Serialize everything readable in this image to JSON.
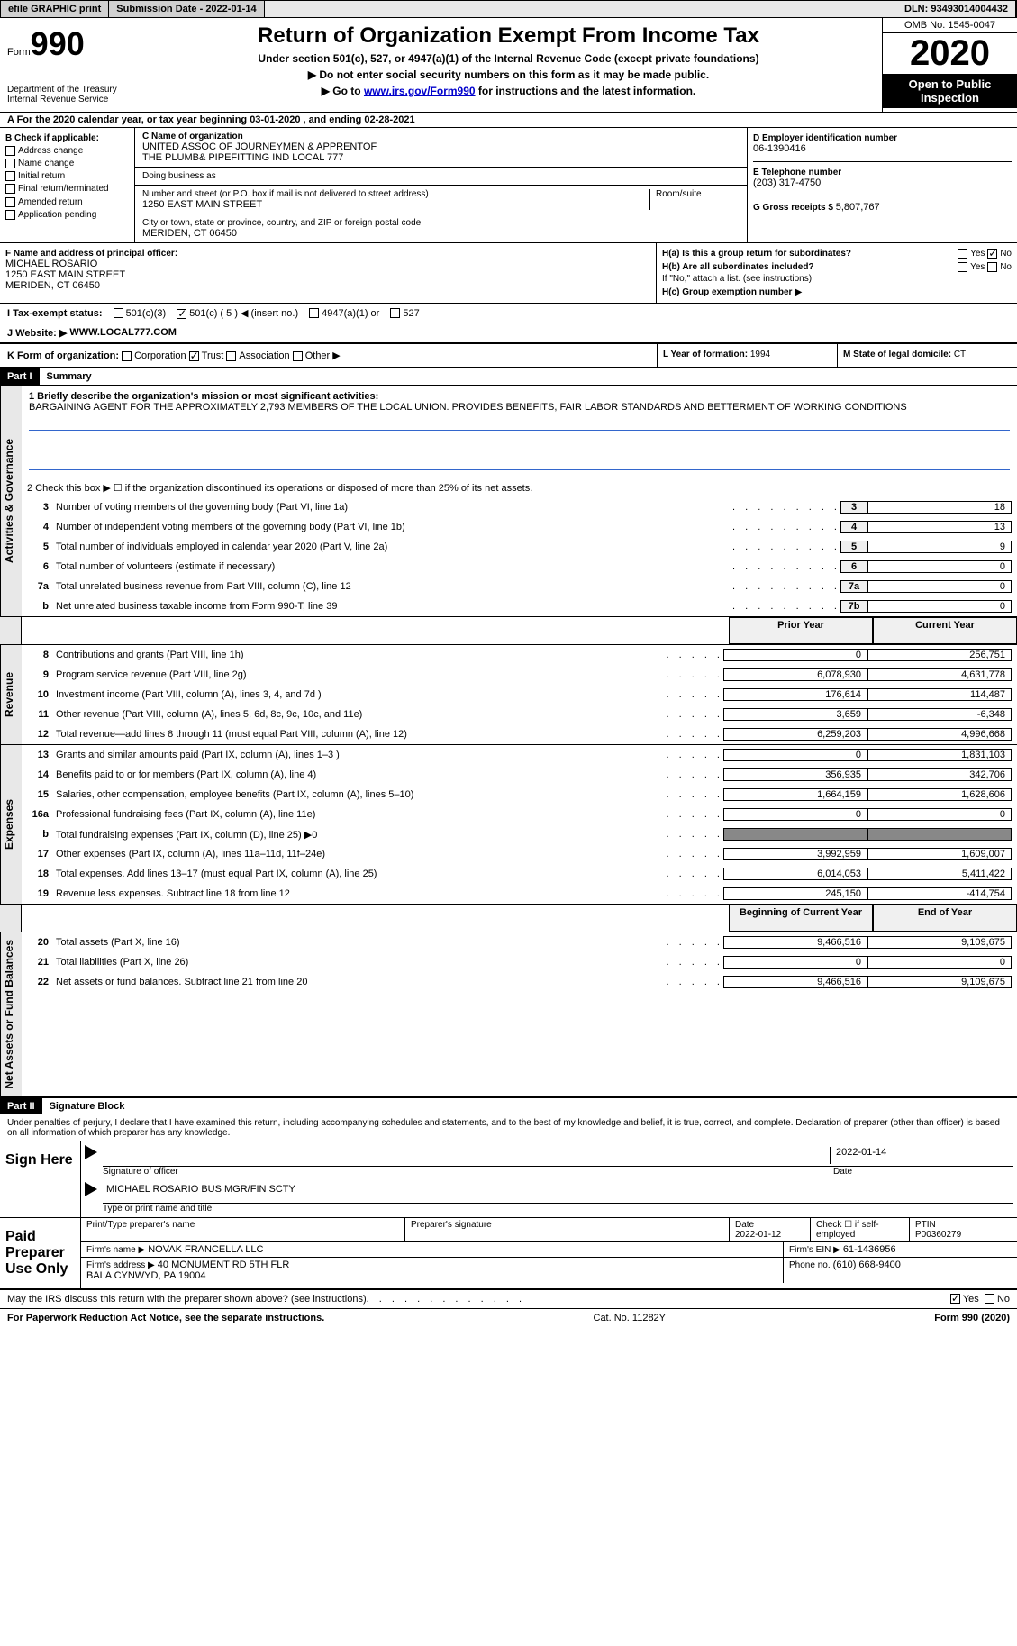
{
  "topbar": {
    "efile": "efile GRAPHIC print",
    "submission_label": "Submission Date - 2022-01-14",
    "dln": "DLN: 93493014004432"
  },
  "header": {
    "form_label": "Form",
    "form_number": "990",
    "title": "Return of Organization Exempt From Income Tax",
    "subtitle": "Under section 501(c), 527, or 4947(a)(1) of the Internal Revenue Code (except private foundations)",
    "note1": "▶ Do not enter social security numbers on this form as it may be made public.",
    "note2_prefix": "▶ Go to ",
    "note2_link": "www.irs.gov/Form990",
    "note2_suffix": " for instructions and the latest information.",
    "dept": "Department of the Treasury\nInternal Revenue Service",
    "omb": "OMB No. 1545-0047",
    "year": "2020",
    "inspection": "Open to Public Inspection"
  },
  "row_a": {
    "text": "A For the 2020 calendar year, or tax year beginning 03-01-2020    , and ending 02-28-2021"
  },
  "col_b": {
    "title": "B Check if applicable:",
    "items": [
      "Address change",
      "Name change",
      "Initial return",
      "Final return/terminated",
      "Amended return",
      "Application pending"
    ]
  },
  "col_c": {
    "name_label": "C Name of organization",
    "name": "UNITED ASSOC OF JOURNEYMEN & APPRENTOF\nTHE PLUMB& PIPEFITTING IND LOCAL 777",
    "dba_label": "Doing business as",
    "dba": "",
    "street_label": "Number and street (or P.O. box if mail is not delivered to street address)",
    "room_label": "Room/suite",
    "street": "1250 EAST MAIN STREET",
    "city_label": "City or town, state or province, country, and ZIP or foreign postal code",
    "city": "MERIDEN, CT  06450"
  },
  "col_d": {
    "ein_label": "D Employer identification number",
    "ein": "06-1390416",
    "phone_label": "E Telephone number",
    "phone": "(203) 317-4750",
    "gross_label": "G Gross receipts $ ",
    "gross": "5,807,767"
  },
  "section_f": {
    "label": "F Name and address of principal officer:",
    "name": "MICHAEL ROSARIO",
    "street": "1250 EAST MAIN STREET",
    "city": "MERIDEN, CT  06450"
  },
  "section_h": {
    "ha_label": "H(a)  Is this a group return for subordinates?",
    "ha_yes": "Yes",
    "ha_no": "No",
    "hb_label": "H(b)  Are all subordinates included?",
    "hb_note": "If \"No,\" attach a list. (see instructions)",
    "hc_label": "H(c)  Group exemption number ▶"
  },
  "row_i": {
    "label": "I   Tax-exempt status:",
    "opts": [
      "501(c)(3)",
      "501(c) ( 5 ) ◀ (insert no.)",
      "4947(a)(1) or",
      "527"
    ]
  },
  "row_j": {
    "label": "J   Website: ▶",
    "value": "WWW.LOCAL777.COM"
  },
  "row_k": {
    "label": "K Form of organization:",
    "opts": [
      "Corporation",
      "Trust",
      "Association",
      "Other ▶"
    ],
    "l_label": "L Year of formation: ",
    "l_val": "1994",
    "m_label": "M State of legal domicile: ",
    "m_val": "CT"
  },
  "part1": {
    "header": "Part I",
    "title": "Summary",
    "line1_label": "1   Briefly describe the organization's mission or most significant activities:",
    "line1_text": "BARGAINING AGENT FOR THE APPROXIMATELY 2,793 MEMBERS OF THE LOCAL UNION. PROVIDES BENEFITS, FAIR LABOR STANDARDS AND BETTERMENT OF WORKING CONDITIONS",
    "line2_label": "2   Check this box ▶ ☐  if the organization discontinued its operations or disposed of more than 25% of its net assets.",
    "governance_label": "Activities & Governance",
    "revenue_label": "Revenue",
    "expenses_label": "Expenses",
    "netassets_label": "Net Assets or Fund Balances",
    "gov_lines": [
      {
        "n": "3",
        "desc": "Number of voting members of the governing body (Part VI, line 1a)",
        "cell": "3",
        "val": "18"
      },
      {
        "n": "4",
        "desc": "Number of independent voting members of the governing body (Part VI, line 1b)",
        "cell": "4",
        "val": "13"
      },
      {
        "n": "5",
        "desc": "Total number of individuals employed in calendar year 2020 (Part V, line 2a)",
        "cell": "5",
        "val": "9"
      },
      {
        "n": "6",
        "desc": "Total number of volunteers (estimate if necessary)",
        "cell": "6",
        "val": "0"
      },
      {
        "n": "7a",
        "desc": "Total unrelated business revenue from Part VIII, column (C), line 12",
        "cell": "7a",
        "val": "0"
      },
      {
        "n": "b",
        "desc": "Net unrelated business taxable income from Form 990-T, line 39",
        "cell": "7b",
        "val": "0"
      }
    ],
    "prior_year_header": "Prior Year",
    "current_year_header": "Current Year",
    "rev_lines": [
      {
        "n": "8",
        "desc": "Contributions and grants (Part VIII, line 1h)",
        "py": "0",
        "cy": "256,751"
      },
      {
        "n": "9",
        "desc": "Program service revenue (Part VIII, line 2g)",
        "py": "6,078,930",
        "cy": "4,631,778"
      },
      {
        "n": "10",
        "desc": "Investment income (Part VIII, column (A), lines 3, 4, and 7d )",
        "py": "176,614",
        "cy": "114,487"
      },
      {
        "n": "11",
        "desc": "Other revenue (Part VIII, column (A), lines 5, 6d, 8c, 9c, 10c, and 11e)",
        "py": "3,659",
        "cy": "-6,348"
      },
      {
        "n": "12",
        "desc": "Total revenue—add lines 8 through 11 (must equal Part VIII, column (A), line 12)",
        "py": "6,259,203",
        "cy": "4,996,668"
      }
    ],
    "exp_lines": [
      {
        "n": "13",
        "desc": "Grants and similar amounts paid (Part IX, column (A), lines 1–3 )",
        "py": "0",
        "cy": "1,831,103"
      },
      {
        "n": "14",
        "desc": "Benefits paid to or for members (Part IX, column (A), line 4)",
        "py": "356,935",
        "cy": "342,706"
      },
      {
        "n": "15",
        "desc": "Salaries, other compensation, employee benefits (Part IX, column (A), lines 5–10)",
        "py": "1,664,159",
        "cy": "1,628,606"
      },
      {
        "n": "16a",
        "desc": "Professional fundraising fees (Part IX, column (A), line 11e)",
        "py": "0",
        "cy": "0"
      },
      {
        "n": "b",
        "desc": "Total fundraising expenses (Part IX, column (D), line 25) ▶0",
        "py": "",
        "cy": "",
        "shaded": true
      },
      {
        "n": "17",
        "desc": "Other expenses (Part IX, column (A), lines 11a–11d, 11f–24e)",
        "py": "3,992,959",
        "cy": "1,609,007"
      },
      {
        "n": "18",
        "desc": "Total expenses. Add lines 13–17 (must equal Part IX, column (A), line 25)",
        "py": "6,014,053",
        "cy": "5,411,422"
      },
      {
        "n": "19",
        "desc": "Revenue less expenses. Subtract line 18 from line 12",
        "py": "245,150",
        "cy": "-414,754"
      }
    ],
    "boy_header": "Beginning of Current Year",
    "eoy_header": "End of Year",
    "na_lines": [
      {
        "n": "20",
        "desc": "Total assets (Part X, line 16)",
        "py": "9,466,516",
        "cy": "9,109,675"
      },
      {
        "n": "21",
        "desc": "Total liabilities (Part X, line 26)",
        "py": "0",
        "cy": "0"
      },
      {
        "n": "22",
        "desc": "Net assets or fund balances. Subtract line 21 from line 20",
        "py": "9,466,516",
        "cy": "9,109,675"
      }
    ]
  },
  "part2": {
    "header": "Part II",
    "title": "Signature Block",
    "declaration": "Under penalties of perjury, I declare that I have examined this return, including accompanying schedules and statements, and to the best of my knowledge and belief, it is true, correct, and complete. Declaration of preparer (other than officer) is based on all information of which preparer has any knowledge.",
    "sign_here": "Sign Here",
    "sig_officer_label": "Signature of officer",
    "sig_date": "2022-01-14",
    "date_label": "Date",
    "officer_name": "MICHAEL ROSARIO  BUS MGR/FIN SCTY",
    "officer_type_label": "Type or print name and title",
    "paid_preparer": "Paid Preparer Use Only",
    "print_name_label": "Print/Type preparer's name",
    "prep_sig_label": "Preparer's signature",
    "prep_date_label": "Date",
    "prep_date": "2022-01-12",
    "check_self": "Check ☐ if self-employed",
    "ptin_label": "PTIN",
    "ptin": "P00360279",
    "firm_name_label": "Firm's name    ▶",
    "firm_name": "NOVAK FRANCELLA LLC",
    "firm_ein_label": "Firm's EIN ▶",
    "firm_ein": "61-1436956",
    "firm_addr_label": "Firm's address ▶",
    "firm_addr": "40 MONUMENT RD 5TH FLR\nBALA CYNWYD, PA  19004",
    "phone_label": "Phone no.",
    "phone": "(610) 668-9400",
    "may_irs": "May the IRS discuss this return with the preparer shown above? (see instructions)",
    "yes": "Yes",
    "no": "No"
  },
  "footer": {
    "left": "For Paperwork Reduction Act Notice, see the separate instructions.",
    "mid": "Cat. No. 11282Y",
    "right": "Form 990 (2020)"
  }
}
